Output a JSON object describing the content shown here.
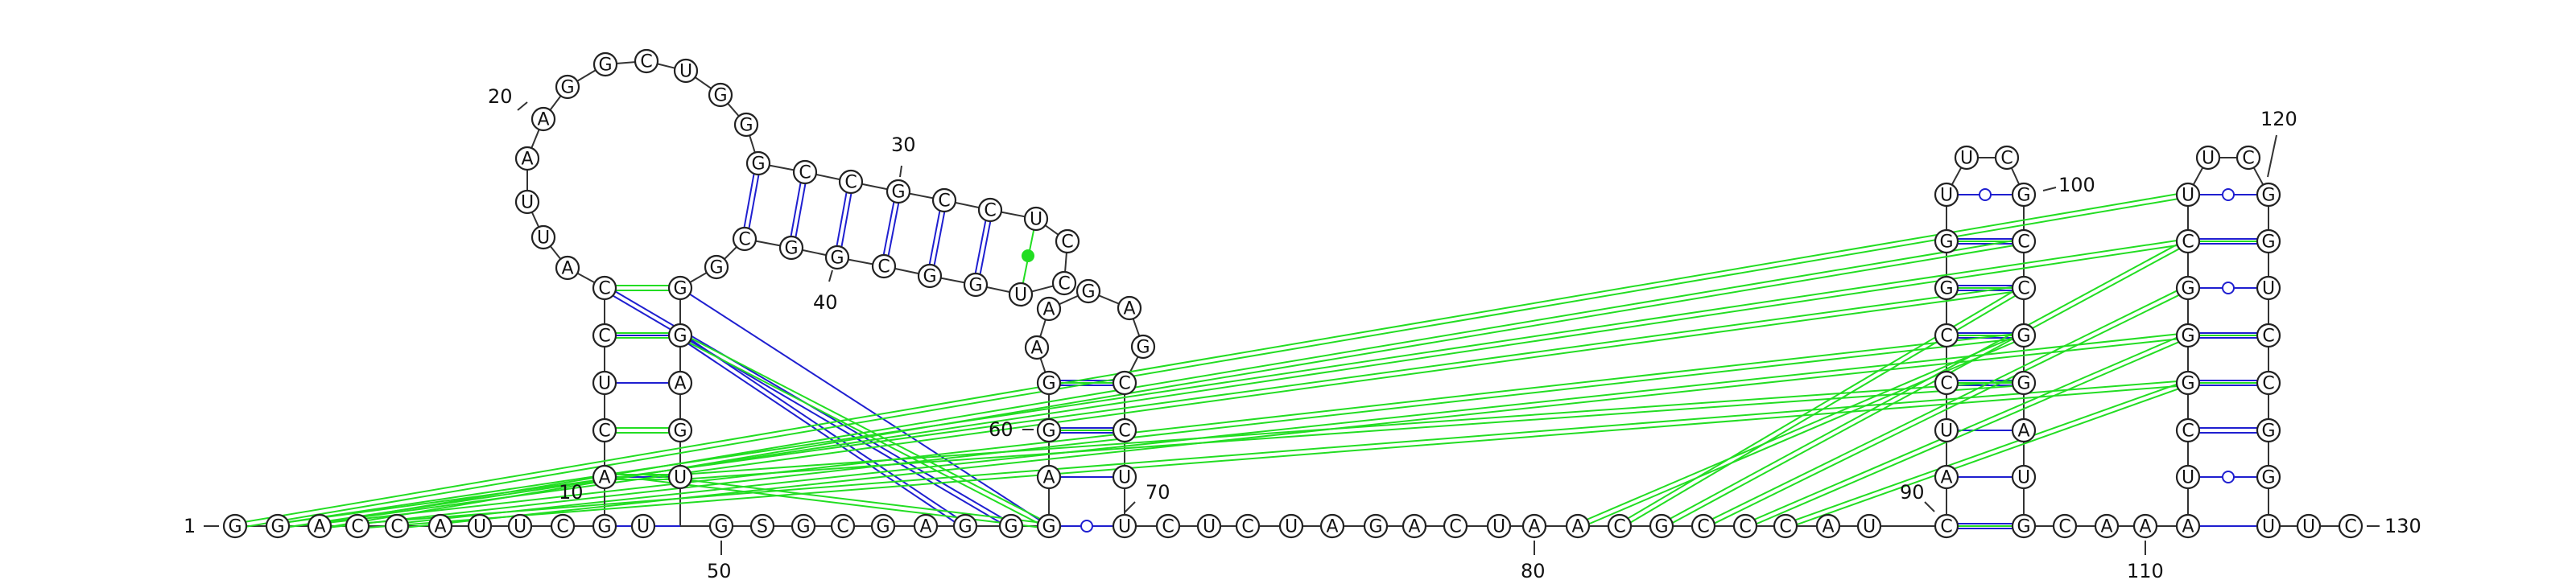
{
  "diagram": {
    "type": "rna-secondary-structure",
    "sequence": "GGACCAUUCGUGSGCGAGGGUCUCUAGACUAACGCCCAUCGCAAAUUC",
    "colors": {
      "backbone": "#333333",
      "canonical_pair": "#1f1fd0",
      "wobble_pair": "#1f1fd0",
      "non_canonical_pair": "#22dd22"
    }
  },
  "labels": {
    "1": "1",
    "10": "10",
    "20": "20",
    "30": "30",
    "40": "40",
    "50": "50",
    "60": "60",
    "70": "70",
    "80": "80",
    "90": "90",
    "100": "100",
    "110": "110",
    "120": "120",
    "130": "130"
  }
}
